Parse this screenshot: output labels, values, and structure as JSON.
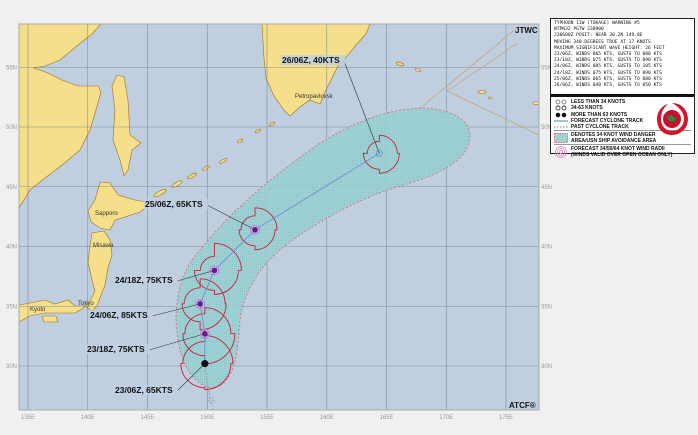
{
  "map": {
    "agency_label": "JTWC",
    "atcf_label": "ATCF®",
    "lon_ticks": [
      "135E",
      "140E",
      "145E",
      "150E",
      "155E",
      "160E",
      "165E",
      "170E",
      "175E"
    ],
    "lat_ticks_left": [
      "55N",
      "50N",
      "45N",
      "40N",
      "35N",
      "30N"
    ],
    "lat_ticks_right": [
      "55N",
      "50N",
      "45N",
      "40N",
      "35N",
      "30N"
    ],
    "cities": [
      "Sapporo",
      "Misawa",
      "Tokyo",
      "Kyoto",
      "Petropavlovsk"
    ],
    "track": [
      {
        "time": "23/06Z",
        "lat": 30.2,
        "lon": 149.8,
        "kts": 65,
        "label": "23/06Z, 65KTS",
        "symbol": "more-than-63-knots"
      },
      {
        "time": "23/18Z",
        "lat": 32.7,
        "lon": 149.8,
        "kts": 75,
        "label": "23/18Z, 75KTS",
        "symbol": "more-than-63-knots"
      },
      {
        "time": "24/06Z",
        "lat": 35.2,
        "lon": 149.4,
        "kts": 85,
        "label": "24/06Z, 85KTS",
        "symbol": "more-than-63-knots"
      },
      {
        "time": "24/18Z",
        "lat": 38.0,
        "lon": 150.6,
        "kts": 75,
        "label": "24/18Z, 75KTS",
        "symbol": "more-than-63-knots"
      },
      {
        "time": "25/06Z",
        "lat": 41.4,
        "lon": 154.0,
        "kts": 65,
        "label": "25/06Z, 65KTS",
        "symbol": "more-than-63-knots"
      },
      {
        "time": "26/06Z",
        "lat": 47.8,
        "lon": 164.4,
        "kts": 40,
        "label": "26/06Z, 40KTS",
        "symbol": "34-63-knots"
      }
    ],
    "colors": {
      "sea": "#c0cfe0",
      "land": "#f5df8a",
      "coast": "#a0701c",
      "danger_area": "#9fd3d3",
      "danger_border": "#e06a78",
      "wind_radii": "#c8203c",
      "track": "#6f8fd0",
      "storm_core": "#6a1a8a",
      "grid": "#6f7a88"
    }
  },
  "legend": {
    "warning_lines": [
      "TYPHOON 11W (TOKAGE) WARNING #5",
      "WTPN32 PGTW 230900",
      "230600Z POSIT: NEAR 30.2N 149.8E",
      "MOVING 340 DEGREES TRUE AT 17 KNOTS",
      "MAXIMUM SIGNIFICANT WAVE HEIGHT: 26 FEET",
      "23/06Z, WINDS 065 KTS, GUSTS TO 080 KTS",
      "23/18Z, WINDS 075 KTS, GUSTS TO 090 KTS",
      "24/06Z, WINDS 085 KTS, GUSTS TO 105 KTS",
      "24/18Z, WINDS 075 KTS, GUSTS TO 090 KTS",
      "25/06Z, WINDS 065 KTS, GUSTS TO 080 KTS",
      "26/06Z, WINDS 040 KTS, GUSTS TO 050 KTS"
    ],
    "keys": {
      "less_34": "LESS THAN 34 KNOTS",
      "k34_63": "34-63 KNOTS",
      "more_63": "MORE THAN 63 KNOTS",
      "forecast_track": "FORECAST CYCLONE TRACK",
      "past_track": "PAST CYCLONE TRACK",
      "danger_1": "DENOTES 34 KNOT WIND DANGER",
      "danger_2": "AREA/USN SHIP AVOIDANCE AREA",
      "radii_1": "FORECAST 34/50/64 KNOT WIND RADII",
      "radii_2": "(WINDS VALID OVER OPEN OCEAN ONLY)"
    },
    "logo": "JTWC"
  }
}
